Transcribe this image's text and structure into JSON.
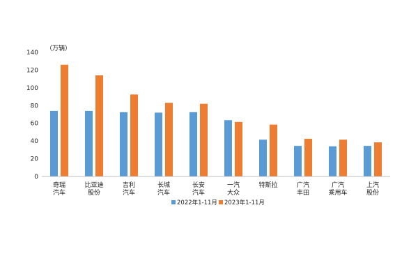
{
  "chart_data": {
    "type": "bar",
    "unit": "（万辆）",
    "ylim": [
      0,
      140
    ],
    "yticks": [
      0,
      20,
      40,
      60,
      80,
      100,
      120,
      140
    ],
    "grid": false,
    "legend_position": "bottom-center",
    "categories": [
      [
        "奇瑞",
        "汽车"
      ],
      [
        "比亚迪",
        "股份"
      ],
      [
        "吉利",
        "汽车"
      ],
      [
        "长城",
        "汽车"
      ],
      [
        "长安",
        "汽车"
      ],
      [
        "一汽",
        "大众"
      ],
      [
        "特斯拉"
      ],
      [
        "广汽",
        "丰田"
      ],
      [
        "广汽",
        "乘用车"
      ],
      [
        "上汽",
        "股份"
      ]
    ],
    "series": [
      {
        "name": "2022年1-11月",
        "color": "#5B9BD5",
        "values": [
          74,
          74,
          72.5,
          72,
          72.5,
          63.5,
          41.5,
          34.5,
          34,
          34.5
        ]
      },
      {
        "name": "2023年1-11月",
        "color": "#ED7D31",
        "values": [
          126,
          114,
          92.5,
          83,
          82,
          61.5,
          58.5,
          42.5,
          41.5,
          38.5
        ]
      }
    ]
  }
}
